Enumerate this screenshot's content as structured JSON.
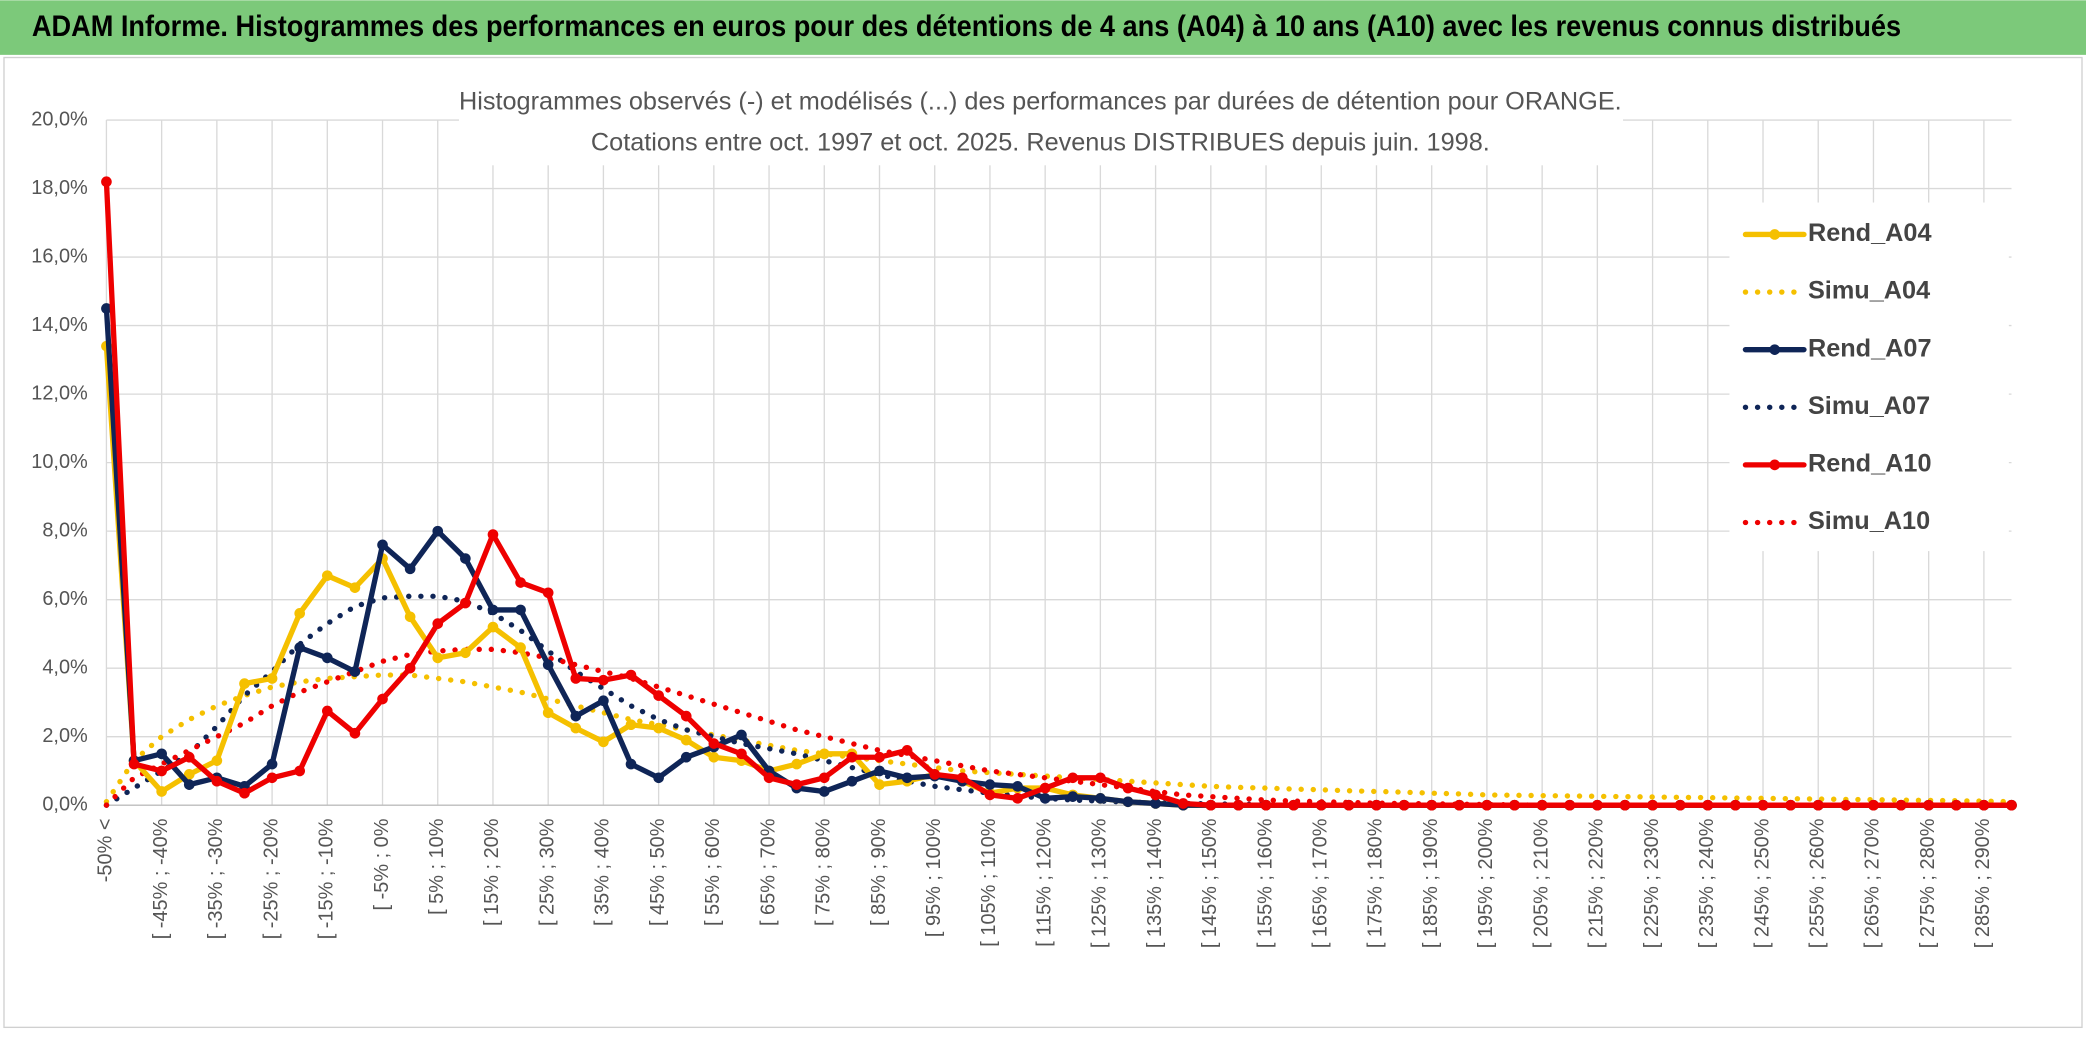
{
  "banner": "ADAM Informe. Histogrammes des performances en euros pour des détentions de 4 ans (A04) à 10 ans (A10) avec les revenus connus distribués",
  "chart_data": {
    "type": "line",
    "title": "Histogrammes observés (-) et modélisés (...) des performances par durées de détention pour ORANGE.",
    "subtitle": "Cotations entre oct. 1997 et oct. 2025. Revenus DISTRIBUES depuis juin. 1998.",
    "categories": [
      "-50% <",
      null,
      "[ -45% ; -40%",
      null,
      "[ -35% ; -30%",
      null,
      "[ -25% ; -20%",
      null,
      "[ -15% ; -10%",
      null,
      "[ -5% ; 0%",
      null,
      "[ 5% ; 10%",
      null,
      "[ 15% ; 20%",
      null,
      "[ 25% ; 30%",
      null,
      "[ 35% ; 40%",
      null,
      "[ 45% ; 50%",
      null,
      "[ 55% ; 60%",
      null,
      "[ 65% ; 70%",
      null,
      "[ 75% ; 80%",
      null,
      "[ 85% ; 90%",
      null,
      "[ 95% ; 100%",
      null,
      "[ 105% ; 110%",
      null,
      "[ 115% ; 120%",
      null,
      "[ 125% ; 130%",
      null,
      "[ 135% ; 140%",
      null,
      "[ 145% ; 150%",
      null,
      "[ 155% ; 160%",
      null,
      "[ 165% ; 170%",
      null,
      "[ 175% ; 180%",
      null,
      "[ 185% ; 190%",
      null,
      "[ 195% ; 200%",
      null,
      "[ 205% ; 210%",
      null,
      "[ 215% ; 220%",
      null,
      "[ 225% ; 230%",
      null,
      "[ 235% ; 240%",
      null,
      "[ 245% ; 250%",
      null,
      "[ 255% ; 260%",
      null,
      "[ 265% ; 270%",
      null,
      "[ 275% ; 280%",
      null,
      "[ 285% ; 290%",
      null
    ],
    "series": [
      {
        "name": "Rend_A04",
        "color": "#f5c000",
        "style": "solid",
        "values": [
          13.4,
          1.3,
          0.4,
          0.9,
          1.3,
          3.55,
          3.7,
          5.6,
          6.7,
          6.35,
          7.2,
          5.5,
          4.3,
          4.45,
          5.2,
          4.6,
          2.7,
          2.25,
          1.85,
          2.35,
          2.25,
          1.9,
          1.4,
          1.3,
          1.0,
          1.2,
          1.5,
          1.5,
          0.6,
          0.7,
          0.9,
          0.7,
          0.35,
          0.5,
          0.5,
          0.3,
          0.2,
          0.1,
          0.05,
          0,
          0,
          0,
          0,
          0,
          0,
          0,
          0,
          0,
          0,
          0,
          0,
          0,
          0,
          0,
          0,
          0,
          0,
          0,
          0,
          0,
          0,
          0,
          0,
          0,
          0,
          0,
          0,
          0,
          0,
          0
        ]
      },
      {
        "name": "Simu_A04",
        "color": "#f5c000",
        "style": "dotted",
        "values": [
          0.1,
          1.3,
          2.0,
          2.5,
          2.9,
          3.2,
          3.45,
          3.6,
          3.7,
          3.75,
          3.8,
          3.8,
          3.7,
          3.6,
          3.45,
          3.3,
          3.1,
          2.9,
          2.7,
          2.5,
          2.35,
          2.2,
          2.05,
          1.9,
          1.75,
          1.6,
          1.5,
          1.4,
          1.3,
          1.2,
          1.1,
          1.0,
          0.95,
          0.9,
          0.85,
          0.8,
          0.75,
          0.7,
          0.65,
          0.6,
          0.55,
          0.52,
          0.5,
          0.47,
          0.45,
          0.42,
          0.4,
          0.38,
          0.35,
          0.33,
          0.3,
          0.29,
          0.28,
          0.27,
          0.26,
          0.25,
          0.24,
          0.23,
          0.22,
          0.21,
          0.2,
          0.19,
          0.18,
          0.17,
          0.16,
          0.15,
          0.14,
          0.13,
          0.12,
          0.1
        ]
      },
      {
        "name": "Rend_A07",
        "color": "#0f2557",
        "style": "solid",
        "values": [
          14.5,
          1.3,
          1.5,
          0.6,
          0.8,
          0.55,
          1.2,
          4.6,
          4.3,
          3.9,
          7.6,
          6.9,
          8.0,
          7.2,
          5.7,
          5.7,
          4.1,
          2.6,
          3.05,
          1.2,
          0.8,
          1.4,
          1.7,
          2.05,
          1.0,
          0.5,
          0.4,
          0.7,
          1.0,
          0.8,
          0.85,
          0.7,
          0.6,
          0.55,
          0.2,
          0.25,
          0.2,
          0.1,
          0.05,
          0,
          0,
          0,
          0,
          0,
          0,
          0,
          0,
          0,
          0,
          0,
          0,
          0,
          0,
          0,
          0,
          0,
          0,
          0,
          0,
          0,
          0,
          0,
          0,
          0,
          0,
          0,
          0,
          0,
          0,
          0
        ]
      },
      {
        "name": "Simu_A07",
        "color": "#0f2557",
        "style": "dotted",
        "values": [
          0,
          0.5,
          1.0,
          1.5,
          2.3,
          3.2,
          3.9,
          4.7,
          5.3,
          5.8,
          6.05,
          6.1,
          6.1,
          5.95,
          5.6,
          5.1,
          4.5,
          3.9,
          3.4,
          2.9,
          2.5,
          2.2,
          2.0,
          1.8,
          1.65,
          1.5,
          1.3,
          1.1,
          0.9,
          0.7,
          0.55,
          0.45,
          0.35,
          0.27,
          0.2,
          0.15,
          0.12,
          0.09,
          0.07,
          0.05,
          0.04,
          0.03,
          0.02,
          0.01,
          0,
          0,
          0,
          0,
          0,
          0,
          0,
          0,
          0,
          0,
          0,
          0,
          0,
          0,
          0,
          0,
          0,
          0,
          0,
          0,
          0,
          0,
          0,
          0,
          0,
          0
        ]
      },
      {
        "name": "Rend_A10",
        "color": "#ee0000",
        "style": "solid",
        "values": [
          18.2,
          1.2,
          1.0,
          1.4,
          0.7,
          0.35,
          0.8,
          1.0,
          2.75,
          2.1,
          3.1,
          4.0,
          5.3,
          5.9,
          7.9,
          6.5,
          6.2,
          3.7,
          3.65,
          3.8,
          3.2,
          2.6,
          1.8,
          1.5,
          0.8,
          0.6,
          0.8,
          1.4,
          1.4,
          1.6,
          0.9,
          0.8,
          0.3,
          0.2,
          0.5,
          0.8,
          0.8,
          0.5,
          0.3,
          0.05,
          0,
          0,
          0,
          0,
          0,
          0,
          0,
          0,
          0,
          0,
          0,
          0,
          0,
          0,
          0,
          0,
          0,
          0,
          0,
          0,
          0,
          0,
          0,
          0,
          0,
          0,
          0,
          0,
          0,
          0
        ]
      },
      {
        "name": "Simu_A10",
        "color": "#ee0000",
        "style": "dotted",
        "values": [
          0,
          0.8,
          1.2,
          1.6,
          2.0,
          2.4,
          2.9,
          3.3,
          3.6,
          3.9,
          4.2,
          4.4,
          4.5,
          4.55,
          4.55,
          4.45,
          4.3,
          4.1,
          3.9,
          3.7,
          3.45,
          3.2,
          2.95,
          2.7,
          2.45,
          2.2,
          2.0,
          1.8,
          1.6,
          1.45,
          1.3,
          1.15,
          1.0,
          0.9,
          0.8,
          0.7,
          0.6,
          0.5,
          0.4,
          0.3,
          0.25,
          0.2,
          0.15,
          0.12,
          0.1,
          0.08,
          0.06,
          0.05,
          0.04,
          0.03,
          0.02,
          0.01,
          0,
          0,
          0,
          0,
          0,
          0,
          0,
          0,
          0,
          0,
          0,
          0,
          0,
          0,
          0,
          0,
          0,
          0
        ]
      }
    ],
    "ylim": [
      0,
      20
    ],
    "yticks": [
      {
        "value": 0,
        "label": "0,0%"
      },
      {
        "value": 2,
        "label": "2,0%"
      },
      {
        "value": 4,
        "label": "4,0%"
      },
      {
        "value": 6,
        "label": "6,0%"
      },
      {
        "value": 8,
        "label": "8,0%"
      },
      {
        "value": 10,
        "label": "10,0%"
      },
      {
        "value": 12,
        "label": "12,0%"
      },
      {
        "value": 14,
        "label": "14,0%"
      },
      {
        "value": 16,
        "label": "16,0%"
      },
      {
        "value": 18,
        "label": "18,0%"
      },
      {
        "value": 20,
        "label": "20,0%"
      }
    ],
    "grid": true,
    "legend": "right"
  }
}
